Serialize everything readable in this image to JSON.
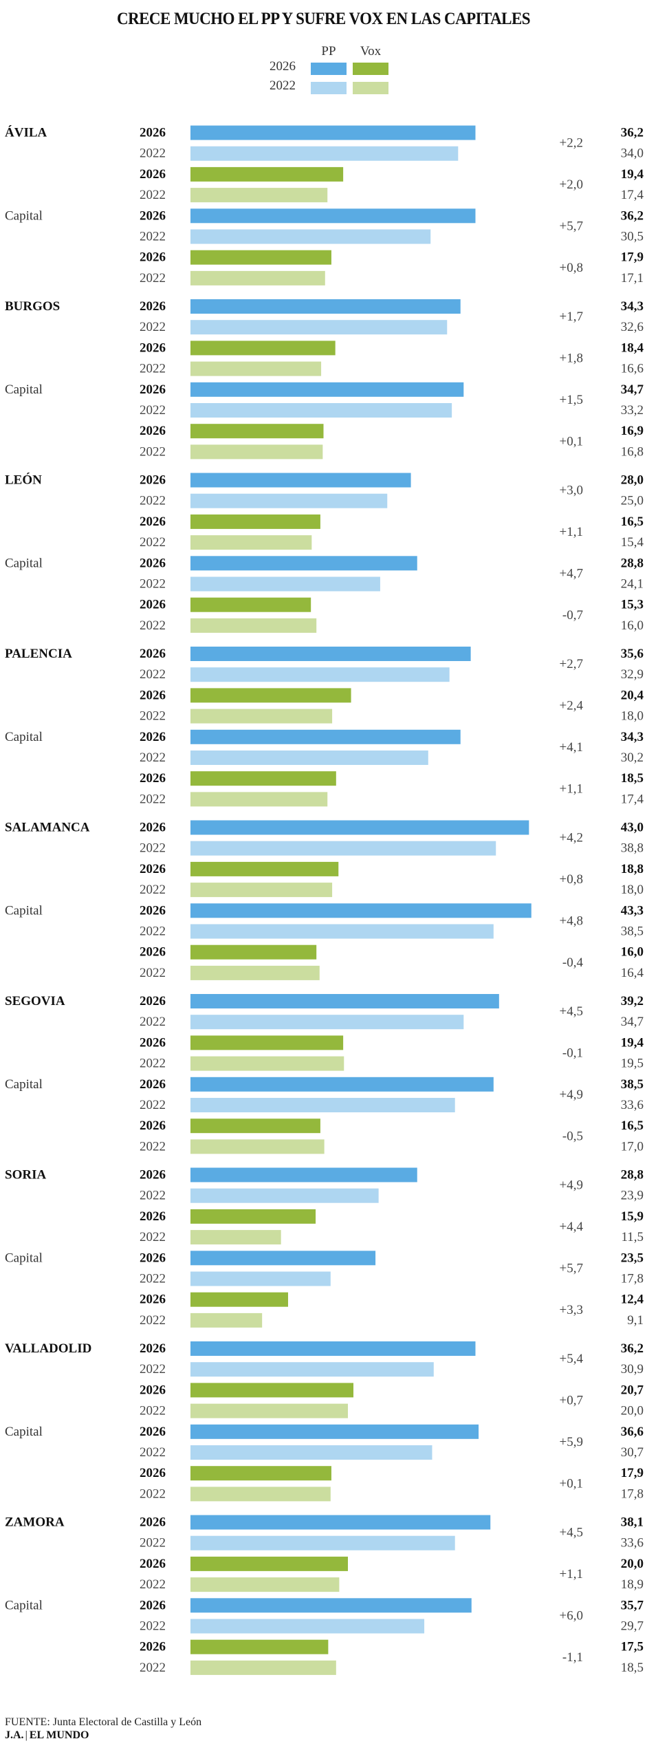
{
  "chart_data": {
    "type": "bar",
    "orientation": "horizontal",
    "title": "CRECE MUCHO EL PP Y SUFRE VOX EN LAS CAPITALES",
    "xlabel": "",
    "ylabel": "",
    "xlim": [
      0,
      45
    ],
    "grid": false,
    "legend": {
      "position": "top-center",
      "columns": [
        "PP",
        "Vox"
      ],
      "rows": [
        "2026",
        "2022"
      ],
      "colors": {
        "PP_2026": "#5aabe3",
        "PP_2022": "#aed6f1",
        "Vox_2026": "#94b83c",
        "Vox_2022": "#cbdd9f"
      }
    },
    "year_labels": {
      "current": "2026",
      "previous": "2022"
    },
    "capital_label": "Capital",
    "provinces": [
      {
        "name": "ÁVILA",
        "province": {
          "pp": [
            36.2,
            34.0
          ],
          "pp_diff": "+2,2",
          "vox": [
            19.4,
            17.4
          ],
          "vox_diff": "+2,0"
        },
        "capital": {
          "pp": [
            36.2,
            30.5
          ],
          "pp_diff": "+5,7",
          "vox": [
            17.9,
            17.1
          ],
          "vox_diff": "+0,8"
        }
      },
      {
        "name": "BURGOS",
        "province": {
          "pp": [
            34.3,
            32.6
          ],
          "pp_diff": "+1,7",
          "vox": [
            18.4,
            16.6
          ],
          "vox_diff": "+1,8"
        },
        "capital": {
          "pp": [
            34.7,
            33.2
          ],
          "pp_diff": "+1,5",
          "vox": [
            16.9,
            16.8
          ],
          "vox_diff": "+0,1"
        }
      },
      {
        "name": "LEÓN",
        "province": {
          "pp": [
            28.0,
            25.0
          ],
          "pp_diff": "+3,0",
          "vox": [
            16.5,
            15.4
          ],
          "vox_diff": "+1,1"
        },
        "capital": {
          "pp": [
            28.8,
            24.1
          ],
          "pp_diff": "+4,7",
          "vox": [
            15.3,
            16.0
          ],
          "vox_diff": "-0,7"
        }
      },
      {
        "name": "PALENCIA",
        "province": {
          "pp": [
            35.6,
            32.9
          ],
          "pp_diff": "+2,7",
          "vox": [
            20.4,
            18.0
          ],
          "vox_diff": "+2,4"
        },
        "capital": {
          "pp": [
            34.3,
            30.2
          ],
          "pp_diff": "+4,1",
          "vox": [
            18.5,
            17.4
          ],
          "vox_diff": "+1,1"
        }
      },
      {
        "name": "SALAMANCA",
        "province": {
          "pp": [
            43.0,
            38.8
          ],
          "pp_diff": "+4,2",
          "vox": [
            18.8,
            18.0
          ],
          "vox_diff": "+0,8"
        },
        "capital": {
          "pp": [
            43.3,
            38.5
          ],
          "pp_diff": "+4,8",
          "vox": [
            16.0,
            16.4
          ],
          "vox_diff": "-0,4"
        }
      },
      {
        "name": "SEGOVIA",
        "province": {
          "pp": [
            39.2,
            34.7
          ],
          "pp_diff": "+4,5",
          "vox": [
            19.4,
            19.5
          ],
          "vox_diff": "-0,1"
        },
        "capital": {
          "pp": [
            38.5,
            33.6
          ],
          "pp_diff": "+4,9",
          "vox": [
            16.5,
            17.0
          ],
          "vox_diff": "-0,5"
        }
      },
      {
        "name": "SORIA",
        "province": {
          "pp": [
            28.8,
            23.9
          ],
          "pp_diff": "+4,9",
          "vox": [
            15.9,
            11.5
          ],
          "vox_diff": "+4,4"
        },
        "capital": {
          "pp": [
            23.5,
            17.8
          ],
          "pp_diff": "+5,7",
          "vox": [
            12.4,
            9.1
          ],
          "vox_diff": "+3,3"
        }
      },
      {
        "name": "VALLADOLID",
        "province": {
          "pp": [
            36.2,
            30.9
          ],
          "pp_diff": "+5,4",
          "vox": [
            20.7,
            20.0
          ],
          "vox_diff": "+0,7"
        },
        "capital": {
          "pp": [
            36.6,
            30.7
          ],
          "pp_diff": "+5,9",
          "vox": [
            17.9,
            17.8
          ],
          "vox_diff": "+0,1"
        }
      },
      {
        "name": "ZAMORA",
        "province": {
          "pp": [
            38.1,
            33.6
          ],
          "pp_diff": "+4,5",
          "vox": [
            20.0,
            18.9
          ],
          "vox_diff": "+1,1"
        },
        "capital": {
          "pp": [
            35.7,
            29.7
          ],
          "pp_diff": "+6,0",
          "vox": [
            17.5,
            18.5
          ],
          "vox_diff": "-1,1"
        }
      }
    ]
  },
  "footer": {
    "source": "FUENTE: Junta Electoral de Castilla y León",
    "author": "J.A.",
    "separator": "|",
    "outlet": "EL MUNDO"
  }
}
